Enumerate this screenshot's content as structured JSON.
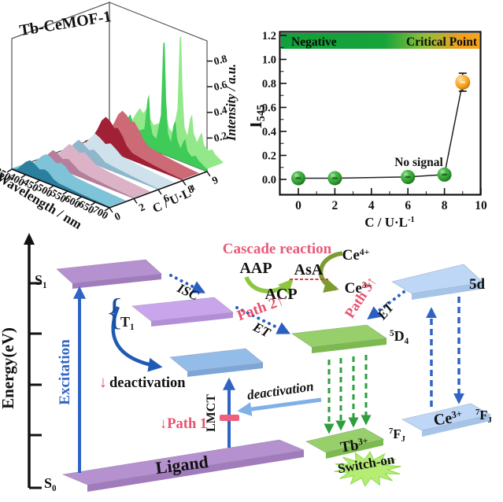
{
  "chart_data": [
    {
      "type": "area",
      "subtype": "3d-waterfall",
      "title": "Tb-CeMOF-1",
      "xlabel": "Wavelength / nm",
      "x_range": [
        350,
        700
      ],
      "x_ticks": [
        "350",
        "400",
        "450",
        "500",
        "550",
        "600",
        "650",
        "700"
      ],
      "ylabel_parts": [
        [
          "C / U·L",
          "n"
        ],
        [
          "-1",
          "sup"
        ]
      ],
      "y_ticks": [
        "0",
        "2",
        "6",
        "8",
        "9"
      ],
      "zlabel": "Intensity / a.u.",
      "z_ticks": [
        "0.2",
        "0.4",
        "0.6",
        "0.8"
      ],
      "series": [
        {
          "name": "0",
          "color": "#2a7f9f",
          "light": "#7fc3d8",
          "points": [
            [
              350,
              0.005
            ],
            [
              370,
              0.02
            ],
            [
              385,
              0.06
            ],
            [
              400,
              0.1
            ],
            [
              415,
              0.125
            ],
            [
              430,
              0.115
            ],
            [
              450,
              0.085
            ],
            [
              468,
              0.1
            ],
            [
              482,
              0.088
            ],
            [
              500,
              0.05
            ],
            [
              520,
              0.035
            ],
            [
              545,
              0.03
            ],
            [
              570,
              0.025
            ],
            [
              600,
              0.02
            ],
            [
              650,
              0.014
            ],
            [
              700,
              0.008
            ]
          ]
        },
        {
          "name": "2",
          "color": "#b57f9b",
          "light": "#dcb3c6",
          "points": [
            [
              350,
              0.005
            ],
            [
              375,
              0.03
            ],
            [
              395,
              0.09
            ],
            [
              410,
              0.13
            ],
            [
              425,
              0.12
            ],
            [
              445,
              0.09
            ],
            [
              465,
              0.11
            ],
            [
              485,
              0.08
            ],
            [
              505,
              0.05
            ],
            [
              545,
              0.035
            ],
            [
              600,
              0.024
            ],
            [
              650,
              0.015
            ],
            [
              700,
              0.008
            ]
          ]
        },
        {
          "name": "6",
          "color": "#8fb6cb",
          "light": "#cfe2ec",
          "points": [
            [
              350,
              0.005
            ],
            [
              378,
              0.035
            ],
            [
              398,
              0.1
            ],
            [
              415,
              0.145
            ],
            [
              432,
              0.125
            ],
            [
              452,
              0.095
            ],
            [
              470,
              0.115
            ],
            [
              490,
              0.085
            ],
            [
              510,
              0.05
            ],
            [
              545,
              0.04
            ],
            [
              600,
              0.026
            ],
            [
              650,
              0.016
            ],
            [
              700,
              0.008
            ]
          ]
        },
        {
          "name": "8",
          "color": "#a02036",
          "light": "#cc6a76",
          "points": [
            [
              350,
              0.01
            ],
            [
              375,
              0.05
            ],
            [
              395,
              0.14
            ],
            [
              410,
              0.22
            ],
            [
              425,
              0.26
            ],
            [
              440,
              0.24
            ],
            [
              455,
              0.2
            ],
            [
              468,
              0.21
            ],
            [
              485,
              0.16
            ],
            [
              500,
              0.1
            ],
            [
              520,
              0.06
            ],
            [
              545,
              0.05
            ],
            [
              570,
              0.04
            ],
            [
              600,
              0.03
            ],
            [
              650,
              0.018
            ],
            [
              700,
              0.01
            ]
          ]
        },
        {
          "name": "9",
          "color": "#3ecb58",
          "light": "#93e98a",
          "points": [
            [
              350,
              0.01
            ],
            [
              370,
              0.06
            ],
            [
              385,
              0.13
            ],
            [
              400,
              0.19
            ],
            [
              412,
              0.16
            ],
            [
              425,
              0.21
            ],
            [
              437,
              0.14
            ],
            [
              450,
              0.1
            ],
            [
              462,
              0.12
            ],
            [
              475,
              0.14
            ],
            [
              487,
              0.38
            ],
            [
              492,
              0.42
            ],
            [
              497,
              0.2
            ],
            [
              505,
              0.12
            ],
            [
              518,
              0.1
            ],
            [
              535,
              0.3
            ],
            [
              543,
              0.86
            ],
            [
              548,
              0.88
            ],
            [
              553,
              0.45
            ],
            [
              560,
              0.18
            ],
            [
              570,
              0.12
            ],
            [
              580,
              0.26
            ],
            [
              587,
              0.3
            ],
            [
              593,
              0.16
            ],
            [
              605,
              0.1
            ],
            [
              615,
              0.16
            ],
            [
              622,
              0.19
            ],
            [
              630,
              0.1
            ],
            [
              645,
              0.07
            ],
            [
              660,
              0.09
            ],
            [
              670,
              0.06
            ],
            [
              685,
              0.04
            ],
            [
              700,
              0.02
            ]
          ]
        }
      ]
    },
    {
      "type": "scatter",
      "xlabel_parts": [
        [
          "C / U·L",
          "n"
        ],
        [
          "-1",
          "sup"
        ]
      ],
      "ylabel_parts": [
        [
          "I",
          "n"
        ],
        [
          "545",
          "sub"
        ]
      ],
      "x_ticks": [
        "0",
        "2",
        "4",
        "6",
        "8",
        "10"
      ],
      "y_ticks": [
        "0.0",
        "0.2",
        "0.4",
        "0.6",
        "0.8",
        "1.0",
        "1.2"
      ],
      "band": {
        "negative": "Negative",
        "critical": "Critical Point"
      },
      "annotation": "No signal",
      "points": [
        {
          "x": 0,
          "y": 0.01,
          "color": "green"
        },
        {
          "x": 2,
          "y": 0.01,
          "color": "green"
        },
        {
          "x": 6,
          "y": 0.02,
          "color": "green"
        },
        {
          "x": 8,
          "y": 0.04,
          "color": "green"
        },
        {
          "x": 9,
          "y": 0.81,
          "err": 0.075,
          "color": "orange"
        }
      ]
    }
  ],
  "energy_diagram": {
    "axis_label": "Energy(eV)",
    "labels": {
      "s1": [
        [
          "S",
          "n"
        ],
        [
          "1",
          "sub"
        ]
      ],
      "t1": [
        [
          "T",
          "n"
        ],
        [
          "1",
          "sub"
        ]
      ],
      "s0": [
        [
          "S",
          "n"
        ],
        [
          "0",
          "sub"
        ]
      ],
      "brace": "{",
      "isc": "ISC",
      "excitation": "Excitation",
      "down_arrow": "↓",
      "deactivation1": "deactivation",
      "path1": "↓Path 1",
      "lmct": "LMCT",
      "deactivation2": "deactivation",
      "cascade": "Cascade reaction",
      "aap": "AAP",
      "asa": "AsA",
      "acp": "ACP",
      "ce4": [
        [
          "Ce",
          "n"
        ],
        [
          "4+",
          "sup"
        ]
      ],
      "ce3": [
        [
          "Ce",
          "n"
        ],
        [
          "3+",
          "sup"
        ]
      ],
      "path2": "Path 2↑",
      "et": "ET",
      "path3": "Path 3↑",
      "d54": [
        [
          "5",
          "sup"
        ],
        [
          "D",
          "n"
        ],
        [
          "4",
          "sub"
        ]
      ],
      "f7j": [
        [
          "7",
          "sup"
        ],
        [
          "F",
          "n"
        ],
        [
          "J",
          "sub"
        ]
      ],
      "tb3": [
        [
          "Tb",
          "n"
        ],
        [
          "3+",
          "sup"
        ]
      ],
      "fived": "5d",
      "ligand": "Ligand",
      "switch_on": "Switch-on"
    }
  },
  "colors": {
    "pink_label": "#e8506e",
    "blue_arrow": "#2f63c4",
    "dotted_blue": "#2a5fc0",
    "green_arrow": "#2f9e3f",
    "light_green_arrow": "#8dc63f",
    "olive_arrow": "#7d9c2f",
    "light_blue_arrow": "#7fb0e8",
    "band_green": "#12a23c",
    "band_orange": "#f5a21f",
    "sphere_green": "#2f9e2f",
    "sphere_orange": "#f59e1b"
  }
}
